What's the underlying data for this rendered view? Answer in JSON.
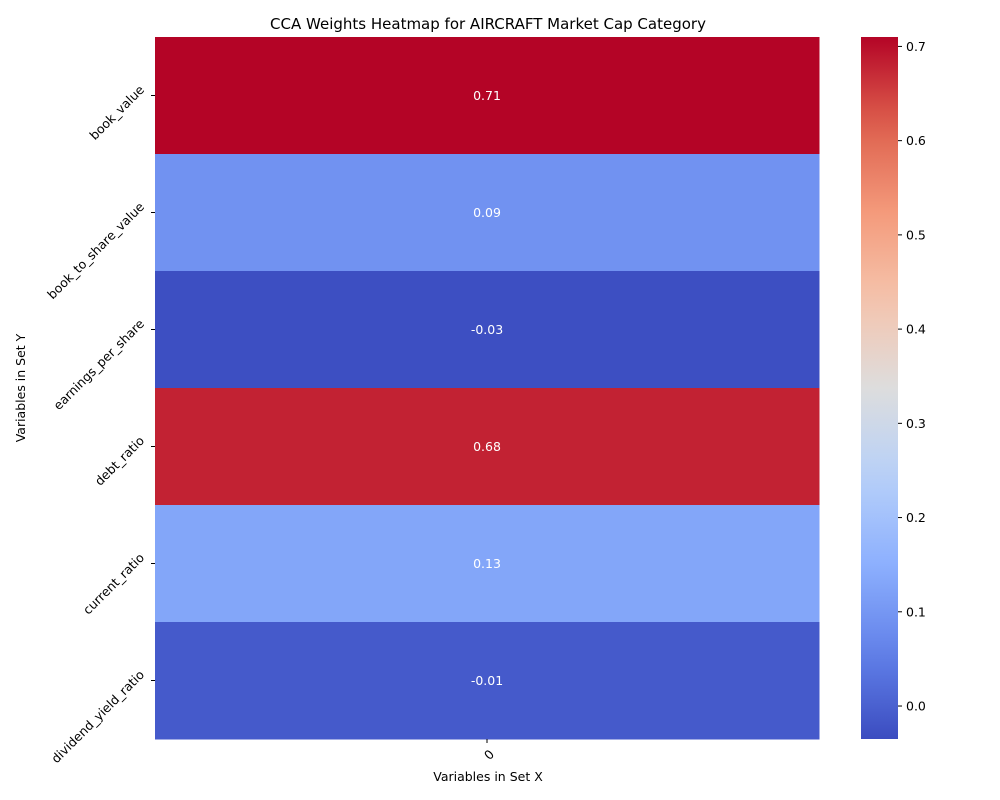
{
  "chart_data": {
    "type": "heatmap",
    "title": "CCA Weights Heatmap for AIRCRAFT Market Cap Category",
    "xlabel": "Variables in Set X",
    "ylabel": "Variables in Set Y",
    "x_categories": [
      "0"
    ],
    "y_categories": [
      "book_value",
      "book_to_share_value",
      "earnings_per_share",
      "debt_ratio",
      "current_ratio",
      "dividend_yield_ratio"
    ],
    "values": [
      [
        0.71
      ],
      [
        0.09
      ],
      [
        -0.03
      ],
      [
        0.68
      ],
      [
        0.13
      ],
      [
        -0.01
      ]
    ],
    "annotations": [
      "0.71",
      "0.09",
      "-0.03",
      "0.68",
      "0.13",
      "-0.01"
    ],
    "colormap": "coolwarm",
    "vmin": -0.035,
    "vmax": 0.71,
    "colorbar": {
      "ticks": [
        0.0,
        0.1,
        0.2,
        0.3,
        0.4,
        0.5,
        0.6,
        0.7
      ],
      "tick_labels": [
        "0.0",
        "0.1",
        "0.2",
        "0.3",
        "0.4",
        "0.5",
        "0.6",
        "0.7"
      ]
    }
  }
}
